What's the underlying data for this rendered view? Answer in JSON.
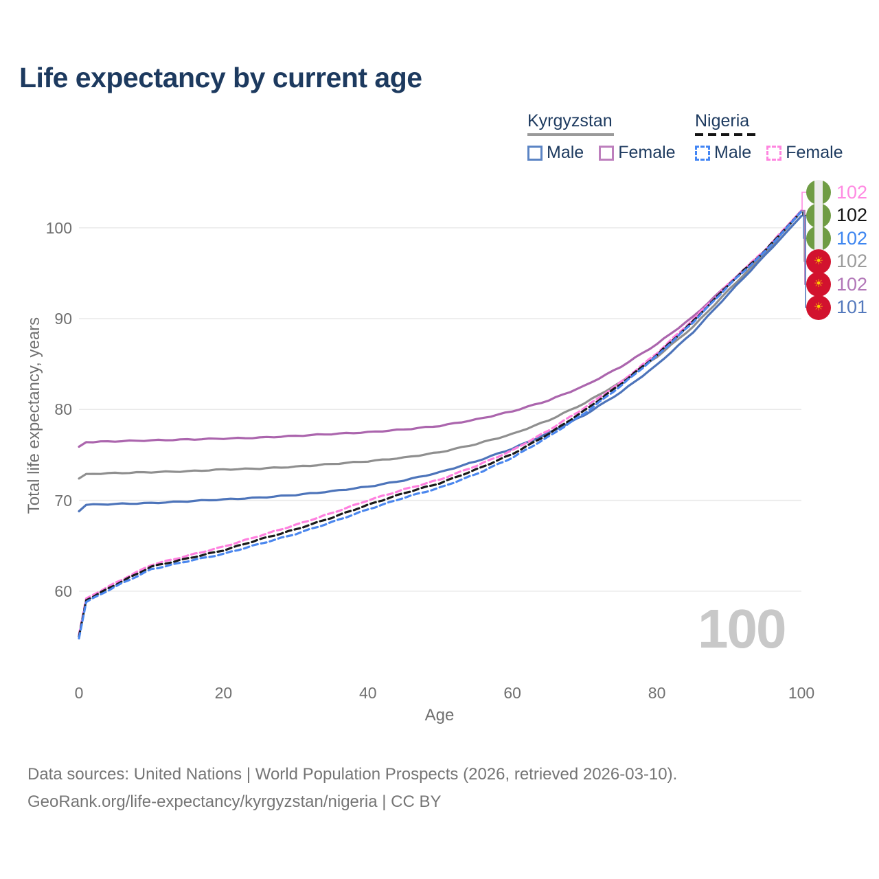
{
  "title": "Life expectancy by current age",
  "legend": {
    "groups": [
      {
        "label": "Kyrgyzstan",
        "line_style": "solid",
        "underline_color": "#9a9a9a",
        "items": [
          {
            "label": "Male",
            "color": "#5b84c4"
          },
          {
            "label": "Female",
            "color": "#bd7fbd"
          }
        ]
      },
      {
        "label": "Nigeria",
        "line_style": "dashed",
        "underline_color": "#141414",
        "items": [
          {
            "label": "Male",
            "color": "#4285f4"
          },
          {
            "label": "Female",
            "color": "#ff85e0"
          }
        ]
      }
    ]
  },
  "chart_data": {
    "type": "line",
    "title": "Life expectancy by current age",
    "xlabel": "Age",
    "ylabel": "Total life expectancy, years",
    "x_ticks": [
      0,
      20,
      40,
      60,
      80,
      100
    ],
    "y_ticks": [
      60,
      70,
      80,
      90,
      100
    ],
    "xlim": [
      0,
      100
    ],
    "ylim": [
      54,
      103
    ],
    "grid": "horizontal",
    "legend_position": "top-right",
    "x": [
      0,
      1,
      5,
      10,
      15,
      20,
      25,
      30,
      35,
      40,
      45,
      50,
      55,
      60,
      65,
      70,
      75,
      80,
      85,
      90,
      95,
      100
    ],
    "series": [
      {
        "name": "Kyrgyzstan",
        "sex": "both",
        "style": "solid",
        "color": "#8f8f8f",
        "values": [
          72.4,
          72.9,
          73.0,
          73.1,
          73.2,
          73.4,
          73.5,
          73.7,
          74.0,
          74.3,
          74.7,
          75.3,
          76.2,
          77.3,
          78.8,
          80.7,
          83.0,
          85.8,
          89.1,
          93.2,
          97.2,
          101.8
        ]
      },
      {
        "name": "Kyrgyzstan Female",
        "sex": "female",
        "style": "solid",
        "color": "#ab65ad",
        "values": [
          75.9,
          76.4,
          76.5,
          76.6,
          76.7,
          76.8,
          76.9,
          77.1,
          77.3,
          77.5,
          77.8,
          78.2,
          78.9,
          79.8,
          81.0,
          82.6,
          84.7,
          87.2,
          90.2,
          93.9,
          97.5,
          101.9
        ]
      },
      {
        "name": "Kyrgyzstan Male",
        "sex": "male",
        "style": "solid",
        "color": "#4d74ba",
        "values": [
          68.8,
          69.5,
          69.6,
          69.7,
          69.9,
          70.1,
          70.3,
          70.6,
          71.0,
          71.5,
          72.2,
          73.1,
          74.3,
          75.7,
          77.4,
          79.4,
          81.9,
          84.9,
          88.5,
          92.8,
          97.0,
          101.3
        ]
      },
      {
        "name": "Nigeria Female",
        "sex": "female",
        "style": "dashed",
        "color": "#ff80df",
        "values": [
          55.2,
          59.2,
          60.9,
          62.9,
          63.9,
          64.9,
          66.1,
          67.3,
          68.6,
          70.0,
          71.2,
          72.3,
          73.8,
          75.5,
          77.7,
          80.2,
          83.0,
          86.2,
          89.9,
          93.9,
          97.6,
          101.9
        ]
      },
      {
        "name": "Nigeria",
        "sex": "both",
        "style": "dashed",
        "color": "#1a1a1a",
        "values": [
          55.0,
          59.0,
          60.7,
          62.7,
          63.6,
          64.5,
          65.7,
          66.8,
          68.1,
          69.5,
          70.8,
          71.9,
          73.4,
          75.1,
          77.3,
          79.9,
          82.8,
          86.0,
          89.7,
          93.8,
          97.5,
          101.8
        ]
      },
      {
        "name": "Nigeria Male",
        "sex": "male",
        "style": "dashed",
        "color": "#4b87ee",
        "values": [
          54.8,
          58.8,
          60.5,
          62.4,
          63.3,
          64.1,
          65.2,
          66.3,
          67.6,
          69.0,
          70.3,
          71.4,
          72.9,
          74.7,
          77.0,
          79.6,
          82.6,
          85.9,
          89.6,
          93.7,
          97.4,
          101.8
        ]
      }
    ]
  },
  "end_labels": [
    {
      "flag": "nigeria",
      "series": "Nigeria Female",
      "label": "102",
      "color": "#ff8ae2"
    },
    {
      "flag": "nigeria",
      "series": "Nigeria",
      "label": "102",
      "color": "#131313"
    },
    {
      "flag": "nigeria",
      "series": "Nigeria Male",
      "label": "102",
      "color": "#3e86f0"
    },
    {
      "flag": "kyrgyzstan",
      "series": "Kyrgyzstan",
      "label": "102",
      "color": "#9b9b9b"
    },
    {
      "flag": "kyrgyzstan",
      "series": "Kyrgyzstan Female",
      "label": "102",
      "color": "#b277b8"
    },
    {
      "flag": "kyrgyzstan",
      "series": "Kyrgyzstan Male",
      "label": "101",
      "color": "#5479bd"
    }
  ],
  "watermark": "100",
  "footer": {
    "line1": "Data sources: United Nations | World Population Prospects (2026, retrieved 2026-03-10).",
    "line2": "GeoRank.org/life-expectancy/kyrgyzstan/nigeria | CC BY"
  },
  "colors": {
    "title_text": "#1d3a5f",
    "axis_text": "#707070",
    "grid": "#e9e9e9",
    "watermark": "#c8c8c8",
    "footer_text": "#757575"
  }
}
